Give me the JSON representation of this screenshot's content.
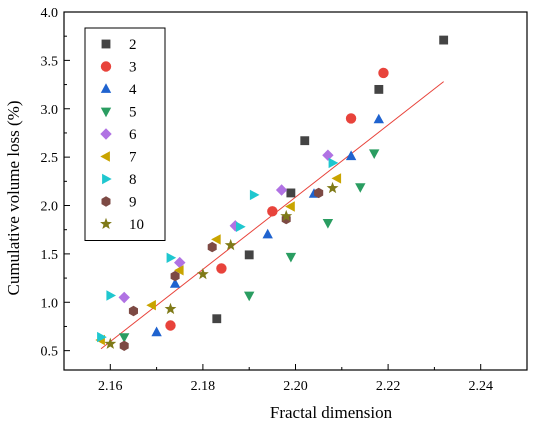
{
  "chart_data": {
    "type": "scatter",
    "title": "",
    "xlabel": "Fractal dimension",
    "ylabel": "Cumulative volume loss (%)",
    "xlim": [
      2.15,
      2.25
    ],
    "ylim": [
      0.3,
      4.0
    ],
    "xticks": [
      "2.16",
      "2.18",
      "2.20",
      "2.22",
      "2.24"
    ],
    "yticks": [
      "0.5",
      "1.0",
      "1.5",
      "2.0",
      "2.5",
      "3.0",
      "3.5",
      "4.0"
    ],
    "grid": false,
    "legend_position": "top-left",
    "fit_line": {
      "x": [
        2.158,
        2.232
      ],
      "y": [
        0.52,
        3.28
      ],
      "color": "#e8433b"
    },
    "series": [
      {
        "name": "2",
        "marker": "square",
        "color": "#444444",
        "x": [
          2.183,
          2.19,
          2.199,
          2.202,
          2.218,
          2.232
        ],
        "y": [
          0.83,
          1.49,
          2.13,
          2.67,
          3.2,
          3.71
        ]
      },
      {
        "name": "3",
        "marker": "circle",
        "color": "#e8433b",
        "x": [
          2.173,
          2.184,
          2.195,
          2.212,
          2.219
        ],
        "y": [
          0.76,
          1.35,
          1.94,
          2.9,
          3.37
        ]
      },
      {
        "name": "4",
        "marker": "triangle-up",
        "color": "#1f63cf",
        "x": [
          2.17,
          2.174,
          2.194,
          2.204,
          2.212,
          2.218
        ],
        "y": [
          0.69,
          1.19,
          1.7,
          2.12,
          2.51,
          2.89
        ]
      },
      {
        "name": "5",
        "marker": "triangle-down",
        "color": "#2a9d61",
        "x": [
          2.163,
          2.19,
          2.199,
          2.207,
          2.214,
          2.217
        ],
        "y": [
          0.64,
          1.07,
          1.47,
          1.82,
          2.19,
          2.54
        ]
      },
      {
        "name": "6",
        "marker": "diamond",
        "color": "#b072e3",
        "x": [
          2.163,
          2.175,
          2.187,
          2.197,
          2.207
        ],
        "y": [
          1.05,
          1.41,
          1.79,
          2.16,
          2.52
        ]
      },
      {
        "name": "7",
        "marker": "triangle-left",
        "color": "#c9a400",
        "x": [
          2.158,
          2.169,
          2.175,
          2.183,
          2.199,
          2.209
        ],
        "y": [
          0.61,
          0.97,
          1.33,
          1.65,
          1.99,
          2.28
        ]
      },
      {
        "name": "8",
        "marker": "triangle-right",
        "color": "#1fc7cf",
        "x": [
          2.158,
          2.16,
          2.173,
          2.188,
          2.191,
          2.208
        ],
        "y": [
          0.64,
          1.07,
          1.46,
          1.78,
          2.11,
          2.44
        ]
      },
      {
        "name": "9",
        "marker": "hexagon",
        "color": "#7d4a44",
        "x": [
          2.163,
          2.165,
          2.174,
          2.182,
          2.198,
          2.205
        ],
        "y": [
          0.55,
          0.91,
          1.27,
          1.57,
          1.86,
          2.13
        ]
      },
      {
        "name": "10",
        "marker": "star",
        "color": "#7f7a18",
        "x": [
          2.16,
          2.173,
          2.18,
          2.186,
          2.198,
          2.208
        ],
        "y": [
          0.57,
          0.93,
          1.29,
          1.59,
          1.89,
          2.18
        ]
      }
    ]
  }
}
